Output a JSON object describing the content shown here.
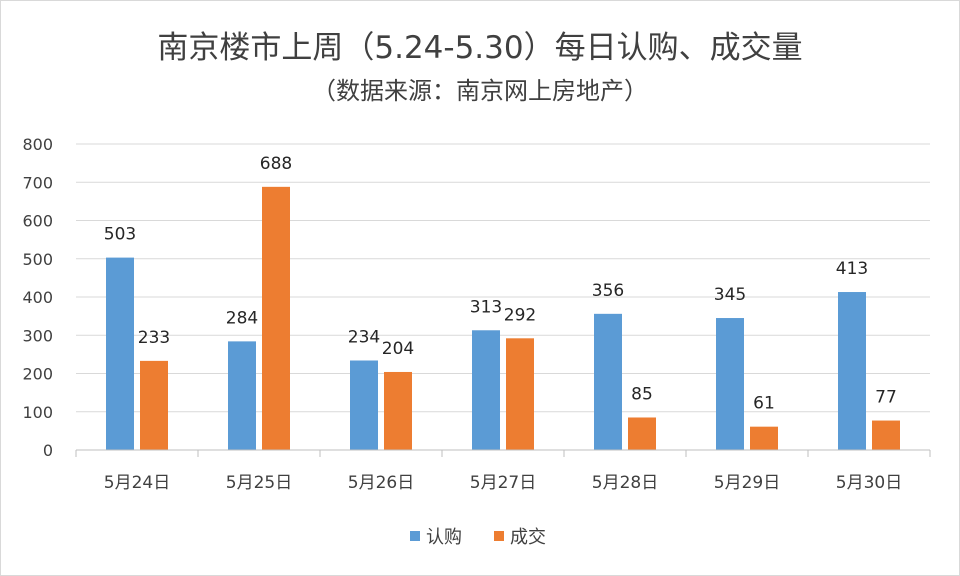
{
  "chart_data": {
    "type": "bar",
    "title": "南京楼市上周（5.24-5.30）每日认购、成交量",
    "subtitle": "（数据来源：南京网上房地产）",
    "categories": [
      "5月24日",
      "5月25日",
      "5月26日",
      "5月27日",
      "5月28日",
      "5月29日",
      "5月30日"
    ],
    "series": [
      {
        "name": "认购",
        "color": "#5b9bd5",
        "values": [
          503,
          284,
          234,
          313,
          356,
          345,
          413
        ]
      },
      {
        "name": "成交",
        "color": "#ed7d31",
        "values": [
          233,
          688,
          204,
          292,
          85,
          61,
          77
        ]
      }
    ],
    "yticks": [
      0,
      100,
      200,
      300,
      400,
      500,
      600,
      700,
      800
    ],
    "ylim": [
      0,
      800
    ],
    "grid": true,
    "data_labels": true,
    "legend": "bottom",
    "colors": {
      "gridline": "#d9d9d9",
      "axis": "#bfbfbf"
    }
  }
}
